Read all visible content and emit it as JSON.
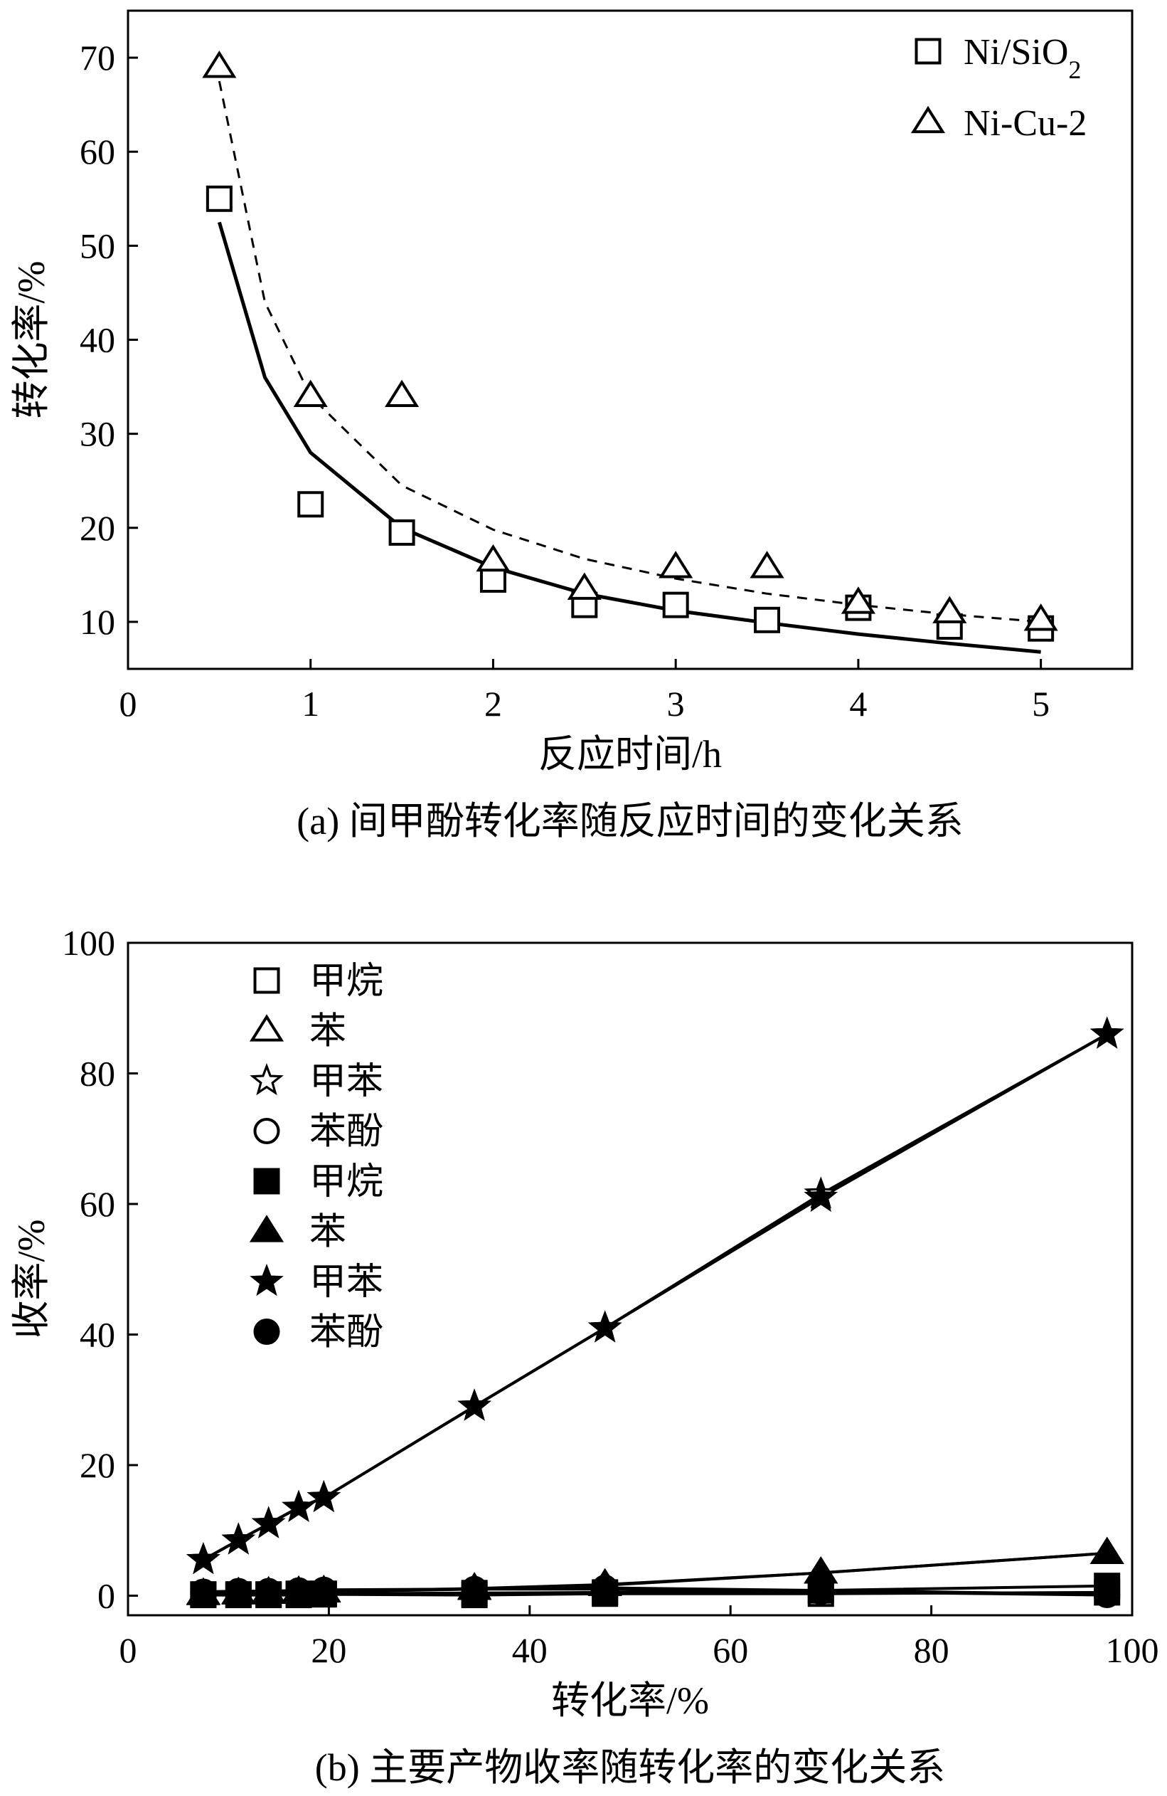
{
  "chart_data": [
    {
      "id": "a",
      "type": "scatter",
      "xlabel": "反应时间/h",
      "ylabel": "转化率/%",
      "caption": "(a) 间甲酚转化率随反应时间的变化关系",
      "xlim": [
        0,
        5.5
      ],
      "ylim": [
        5,
        75
      ],
      "xticks": [
        "0",
        "1",
        "2",
        "3",
        "4",
        "5"
      ],
      "yticks": [
        "10",
        "20",
        "30",
        "40",
        "50",
        "60",
        "70"
      ],
      "legend_position": "top-right",
      "series": [
        {
          "name": "Ni/SiO2",
          "marker": "square-open",
          "x": [
            0.5,
            1.0,
            1.5,
            2.0,
            2.5,
            3.0,
            3.5,
            4.0,
            4.5,
            5.0
          ],
          "y": [
            55.0,
            22.5,
            19.5,
            14.5,
            11.8,
            11.8,
            10.2,
            11.5,
            9.5,
            9.3
          ],
          "fit": {
            "style": "solid",
            "x": [
              0.5,
              0.75,
              1.0,
              1.5,
              2.0,
              2.5,
              3.0,
              3.5,
              4.0,
              4.5,
              5.0
            ],
            "y": [
              52.5,
              36.0,
              28.0,
              20.0,
              15.8,
              13.0,
              11.2,
              9.9,
              8.7,
              7.7,
              6.8
            ]
          }
        },
        {
          "name": "Ni-Cu-2",
          "marker": "triangle-open",
          "x": [
            0.5,
            1.0,
            1.5,
            2.0,
            2.5,
            3.0,
            3.5,
            4.0,
            4.5,
            5.0
          ],
          "y": [
            69.0,
            34.0,
            34.0,
            16.5,
            13.5,
            15.8,
            15.8,
            12.0,
            11.0,
            10.2
          ],
          "fit": {
            "style": "dashed",
            "x": [
              0.5,
              0.75,
              1.0,
              1.5,
              2.0,
              2.5,
              3.0,
              3.5,
              4.0,
              4.5,
              5.0
            ],
            "y": [
              67.5,
              44.0,
              34.0,
              24.5,
              19.8,
              16.7,
              14.6,
              13.0,
              11.8,
              10.8,
              10.0
            ]
          }
        }
      ]
    },
    {
      "id": "b",
      "type": "line",
      "xlabel": "转化率/%",
      "ylabel": "收率/%",
      "caption": "(b) 主要产物收率随转化率的变化关系",
      "xlim": [
        0,
        100
      ],
      "ylim": [
        -3,
        100
      ],
      "xticks": [
        "0",
        "20",
        "40",
        "60",
        "80",
        "100"
      ],
      "yticks": [
        "0",
        "20",
        "40",
        "60",
        "80",
        "100"
      ],
      "legend_position": "top-left",
      "series": [
        {
          "name": "甲烷",
          "marker": "square-open",
          "x": [
            7.5,
            11,
            14,
            17,
            19.5,
            34.5,
            47.5,
            69,
            97.5
          ],
          "y": [
            0.1,
            0.1,
            0.1,
            0.1,
            0.2,
            0.1,
            0.3,
            0.3,
            0.5
          ]
        },
        {
          "name": "苯",
          "marker": "triangle-open",
          "x": [
            7.5,
            11,
            14,
            17,
            19.5,
            34.5,
            47.5,
            69,
            97.5
          ],
          "y": [
            0.2,
            0.3,
            0.4,
            0.5,
            0.6,
            1.0,
            1.6,
            3.5,
            6.5
          ]
        },
        {
          "name": "甲苯",
          "marker": "star-open",
          "x": [
            7.5,
            11,
            14,
            17,
            19.5,
            34.5,
            47.5,
            69,
            97.5
          ],
          "y": [
            5.5,
            8.5,
            11.0,
            13.5,
            15.0,
            29.0,
            41.0,
            61.5,
            86.0
          ]
        },
        {
          "name": "苯酚",
          "marker": "circle-open",
          "x": [
            7.5,
            11,
            14,
            17,
            19.5,
            34.5,
            47.5,
            69,
            97.5
          ],
          "y": [
            0.5,
            0.6,
            0.6,
            0.7,
            0.8,
            1.0,
            1.0,
            0.6,
            0.1
          ]
        },
        {
          "name": "甲烷",
          "marker": "square-filled",
          "x": [
            7.5,
            11,
            14,
            17,
            19.5,
            34.5,
            47.5,
            69,
            97.5
          ],
          "y": [
            0.2,
            0.2,
            0.2,
            0.3,
            0.3,
            0.4,
            0.5,
            0.8,
            1.5
          ]
        },
        {
          "name": "苯",
          "marker": "triangle-filled",
          "x": [
            7.5,
            11,
            14,
            17,
            19.5,
            34.5,
            47.5,
            69,
            97.5
          ],
          "y": [
            0.3,
            0.4,
            0.5,
            0.6,
            0.7,
            1.1,
            1.7,
            3.5,
            6.5
          ]
        },
        {
          "name": "甲苯",
          "marker": "star-filled",
          "x": [
            7.5,
            11,
            14,
            17,
            19.5,
            34.5,
            47.5,
            69,
            97.5
          ],
          "y": [
            5.5,
            8.5,
            11.0,
            13.5,
            15.0,
            29.0,
            41.0,
            61.0,
            86.0
          ]
        },
        {
          "name": "苯酚",
          "marker": "circle-filled",
          "x": [
            7.5,
            11,
            14,
            17,
            19.5,
            34.5,
            47.5,
            69,
            97.5
          ],
          "y": [
            0.6,
            0.7,
            0.7,
            0.8,
            0.9,
            1.0,
            1.2,
            0.8,
            0.2
          ]
        }
      ]
    }
  ]
}
